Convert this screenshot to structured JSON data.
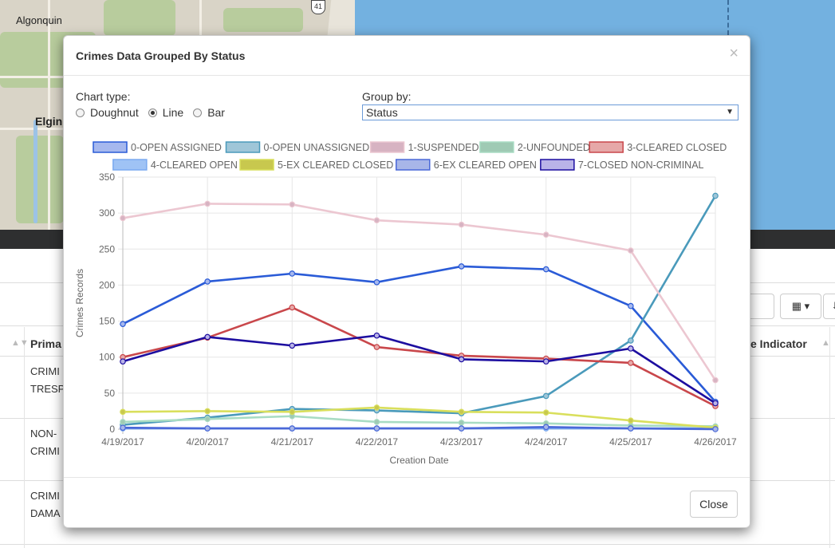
{
  "map": {
    "labels": [
      "Algonquin",
      "Elgin"
    ],
    "route_shield": "41"
  },
  "table": {
    "headers": [
      "Prima",
      "e Indicator"
    ],
    "rows": [
      [
        "CRIMI",
        "TRESP"
      ],
      [
        "NON-",
        "CRIMI"
      ],
      [
        "CRIMI",
        "DAMA"
      ]
    ]
  },
  "modal": {
    "title": "Crimes Data Grouped By Status",
    "close_symbol": "×",
    "chart_type_label": "Chart type:",
    "chart_types": [
      {
        "label": "Doughnut",
        "checked": false
      },
      {
        "label": "Line",
        "checked": true
      },
      {
        "label": "Bar",
        "checked": false
      }
    ],
    "group_by_label": "Group by:",
    "group_by_value": "Status",
    "close_button": "Close"
  },
  "chart_data": {
    "type": "line",
    "xlabel": "Creation Date",
    "ylabel": "Crimes Records",
    "ylim": [
      0,
      350
    ],
    "yticks": [
      0,
      50,
      100,
      150,
      200,
      250,
      300,
      350
    ],
    "grid": true,
    "legend_position": "top",
    "x": [
      "4/19/2017",
      "4/20/2017",
      "4/21/2017",
      "4/22/2017",
      "4/23/2017",
      "4/24/2017",
      "4/25/2017",
      "4/26/2017"
    ],
    "series": [
      {
        "name": "0-OPEN ASSIGNED",
        "color": "#2a5bd7",
        "fill": "#a6b8ee",
        "values": [
          146,
          205,
          216,
          204,
          226,
          222,
          171,
          38
        ]
      },
      {
        "name": "0-OPEN UNASSIGNED",
        "color": "#4a9abb",
        "fill": "#9fc6d8",
        "values": [
          6,
          16,
          28,
          26,
          22,
          46,
          123,
          324
        ]
      },
      {
        "name": "1-SUSPENDED",
        "color": "#ecc7d1",
        "fill": "#d7b3c2",
        "values": [
          293,
          313,
          312,
          290,
          284,
          270,
          248,
          68
        ]
      },
      {
        "name": "2-UNFOUNDED",
        "color": "#a8dcc3",
        "fill": "#9fcab4",
        "values": [
          10,
          14,
          18,
          10,
          9,
          8,
          5,
          4
        ]
      },
      {
        "name": "3-CLEARED CLOSED",
        "color": "#c9474b",
        "fill": "#e6a8a8",
        "values": [
          100,
          127,
          169,
          114,
          102,
          98,
          92,
          32
        ]
      },
      {
        "name": "4-CLEARED OPEN",
        "color": "#7aaaf0",
        "fill": "#9fc3f5",
        "values": [
          1,
          1,
          1,
          1,
          1,
          1,
          1,
          1
        ]
      },
      {
        "name": "5-EX CLEARED CLOSED",
        "color": "#d9df5c",
        "fill": "#c8c84e",
        "values": [
          24,
          25,
          24,
          30,
          24,
          23,
          12,
          2
        ]
      },
      {
        "name": "6-EX CLEARED OPEN",
        "color": "#4a68d8",
        "fill": "#a8b6e8",
        "values": [
          2,
          1,
          1,
          1,
          1,
          3,
          1,
          0
        ]
      },
      {
        "name": "7-CLOSED NON-CRIMINAL",
        "color": "#1d0ea0",
        "fill": "#b9b3e8",
        "values": [
          94,
          128,
          116,
          130,
          97,
          94,
          112,
          36
        ]
      }
    ]
  }
}
